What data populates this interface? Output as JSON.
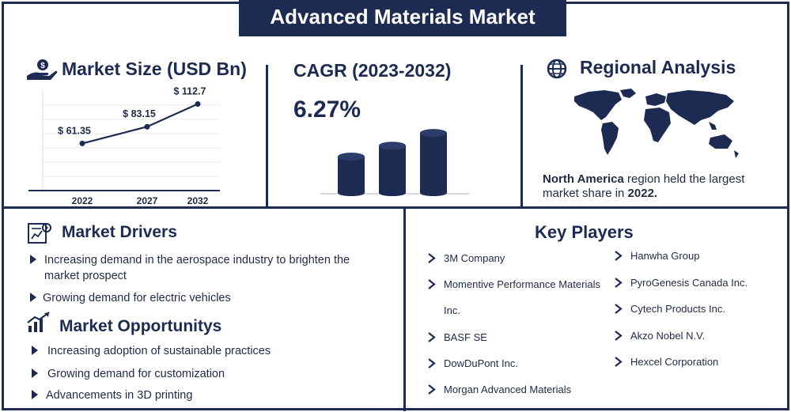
{
  "title": "Advanced Materials Market",
  "market_size": {
    "heading": "Market Size (USD Bn)"
  },
  "cagr": {
    "heading": "CAGR (2023-2032)",
    "value": "6.27%"
  },
  "regional": {
    "heading": "Regional Analysis",
    "region": "North America",
    "text_mid": " region held the largest market share in ",
    "year": "2022."
  },
  "drivers": {
    "heading": "Market Drivers",
    "items": [
      "Increasing demand in the aerospace industry to brighten the market prospect",
      "Growing demand for electric vehicles"
    ]
  },
  "opportunities": {
    "heading": "Market Opportunitys",
    "items": [
      "Increasing adoption of sustainable practices",
      "Growing demand for customization",
      "Advancements in 3D printing"
    ]
  },
  "key_players": {
    "heading": "Key Players",
    "left": [
      "3M Company",
      "Momentive Performance Materials Inc.",
      "BASF SE",
      "DowDuPont Inc.",
      "Morgan Advanced Materials"
    ],
    "right": [
      "Hanwha Group",
      "PyroGenesis Canada Inc.",
      "Cytech Products Inc.",
      "Akzo Nobel N.V.",
      "Hexcel Corporation"
    ]
  },
  "colors": {
    "navy": "#1d2b53"
  },
  "icons": [
    "money-hand-icon",
    "globe-icon",
    "chart-board-icon",
    "growth-arrow-icon",
    "triangle-bullet-icon",
    "arrow-bullet-icon",
    "world-map-icon"
  ],
  "chart_data": [
    {
      "type": "line",
      "x": [
        "2022",
        "2027",
        "2032"
      ],
      "values": [
        61.35,
        83.15,
        112.7
      ],
      "data_labels": [
        "$ 61.35",
        "$ 83.15",
        "$ 112.7"
      ],
      "ylim": [
        0,
        140
      ]
    },
    {
      "type": "bar",
      "note_type": "decorative-3d-cylinders",
      "values": [
        1,
        1.3,
        1.65
      ]
    }
  ]
}
